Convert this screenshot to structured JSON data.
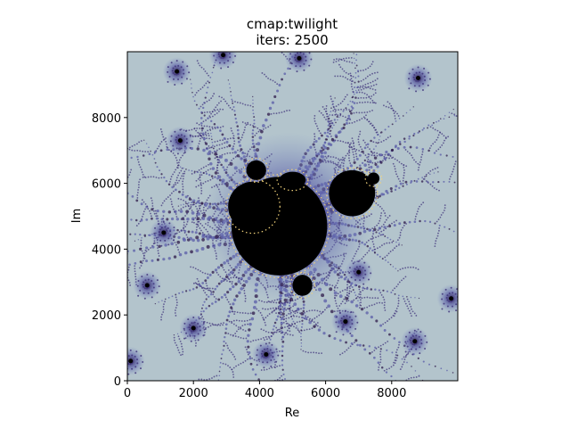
{
  "chart_data": {
    "type": "heatmap",
    "title_line1": "cmap:twilight",
    "title_line2": "iters: 2500",
    "xlabel": "Re",
    "ylabel": "Im",
    "xlim": [
      0,
      10000
    ],
    "ylim": [
      0,
      10000
    ],
    "x_ticks": [
      0,
      2000,
      4000,
      6000,
      8000
    ],
    "y_ticks": [
      0,
      2000,
      4000,
      6000,
      8000
    ],
    "x_tick_labels": [
      "0",
      "2000",
      "4000",
      "6000",
      "8000"
    ],
    "y_tick_labels": [
      "0",
      "2000",
      "4000",
      "6000",
      "8000"
    ],
    "colormap": "twilight",
    "grid": false,
    "colors": {
      "background": "#b3c4cc",
      "set_interior": "#000000",
      "filament": "#5a5ca8",
      "filament_dark": "#2e1a4a",
      "edge_glow": "#f2d37a"
    }
  }
}
